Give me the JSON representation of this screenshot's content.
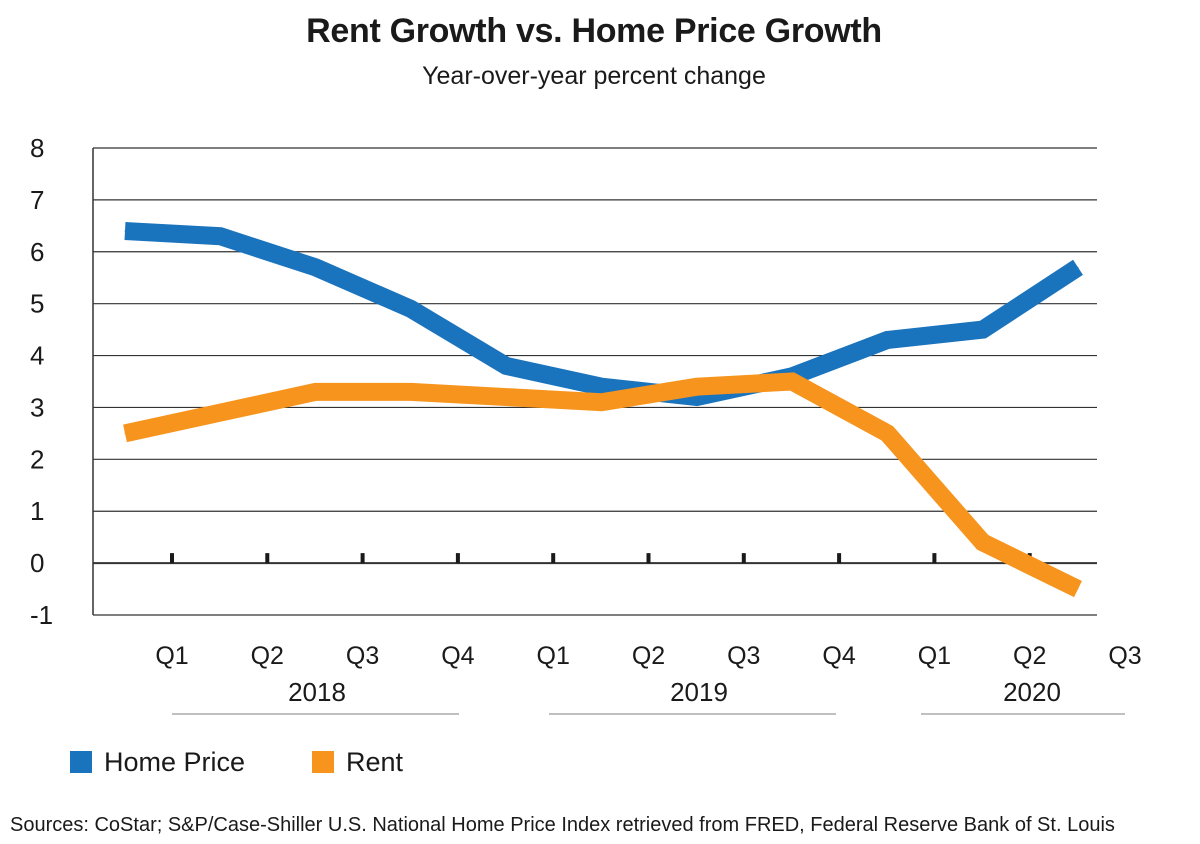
{
  "title": "Rent Growth vs. Home Price Growth",
  "subtitle": "Year-over-year percent change",
  "source": "Sources: CoStar; S&P/Case-Shiller U.S. National Home Price Index retrieved from FRED, Federal Reserve Bank of St. Louis",
  "colors": {
    "home_price": "#1a73bd",
    "rent": "#f7941d",
    "grid": "#333333"
  },
  "legend": [
    {
      "label": "Home Price",
      "color": "#1a73bd"
    },
    {
      "label": "Rent",
      "color": "#f7941d"
    }
  ],
  "chart_data": {
    "type": "line",
    "ylim": [
      -1,
      8
    ],
    "yticks": [
      -1,
      0,
      1,
      2,
      3,
      4,
      5,
      6,
      7,
      8
    ],
    "quarters": [
      "Q1",
      "Q2",
      "Q3",
      "Q4",
      "Q1",
      "Q2",
      "Q3",
      "Q4",
      "Q1",
      "Q2",
      "Q3"
    ],
    "years": [
      {
        "label": "2018",
        "quarters": [
          "Q1",
          "Q2",
          "Q3",
          "Q4"
        ]
      },
      {
        "label": "2019",
        "quarters": [
          "Q1",
          "Q2",
          "Q3",
          "Q4"
        ]
      },
      {
        "label": "2020",
        "quarters": [
          "Q1",
          "Q2",
          "Q3"
        ]
      }
    ],
    "x": [
      "2018 Q1",
      "2018 Q2",
      "2018 Q3",
      "2018 Q4",
      "2019 Q1",
      "2019 Q2",
      "2019 Q3",
      "2019 Q4",
      "2020 Q1",
      "2020 Q2",
      "2020 Q3"
    ],
    "series": [
      {
        "name": "Home Price",
        "color": "#1a73bd",
        "values": [
          6.4,
          6.3,
          5.7,
          4.9,
          3.8,
          3.4,
          3.2,
          3.6,
          4.3,
          4.5,
          5.7
        ]
      },
      {
        "name": "Rent",
        "color": "#f7941d",
        "values": [
          2.5,
          2.9,
          3.3,
          3.3,
          3.2,
          3.1,
          3.4,
          3.5,
          2.5,
          0.4,
          -0.5
        ]
      }
    ],
    "grid": true,
    "legend_position": "bottom-left"
  }
}
